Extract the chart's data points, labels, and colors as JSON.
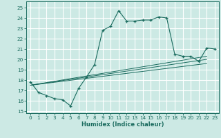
{
  "xlabel": "Humidex (Indice chaleur)",
  "bg_color": "#cce9e4",
  "grid_color": "#ffffff",
  "line_color": "#1a6b5e",
  "xlim": [
    -0.5,
    23.5
  ],
  "ylim": [
    14.8,
    25.6
  ],
  "xticks": [
    0,
    1,
    2,
    3,
    4,
    5,
    6,
    7,
    8,
    9,
    10,
    11,
    12,
    13,
    14,
    15,
    16,
    17,
    18,
    19,
    20,
    21,
    22,
    23
  ],
  "yticks": [
    15,
    16,
    17,
    18,
    19,
    20,
    21,
    22,
    23,
    24,
    25
  ],
  "main_x": [
    0,
    1,
    2,
    3,
    4,
    5,
    6,
    7,
    8,
    9,
    10,
    11,
    12,
    13,
    14,
    15,
    16,
    17,
    18,
    19,
    20,
    21,
    22,
    23
  ],
  "main_y": [
    17.8,
    16.8,
    16.5,
    16.2,
    16.1,
    15.5,
    17.2,
    18.3,
    19.5,
    22.8,
    23.2,
    24.7,
    23.7,
    23.7,
    23.8,
    23.8,
    24.1,
    24.0,
    20.5,
    20.3,
    20.3,
    19.8,
    21.1,
    21.0
  ],
  "line1_x": [
    0,
    22
  ],
  "line1_y": [
    17.5,
    20.3
  ],
  "line2_x": [
    0,
    22
  ],
  "line2_y": [
    17.5,
    20.0
  ],
  "line3_x": [
    0,
    22
  ],
  "line3_y": [
    17.5,
    19.6
  ]
}
